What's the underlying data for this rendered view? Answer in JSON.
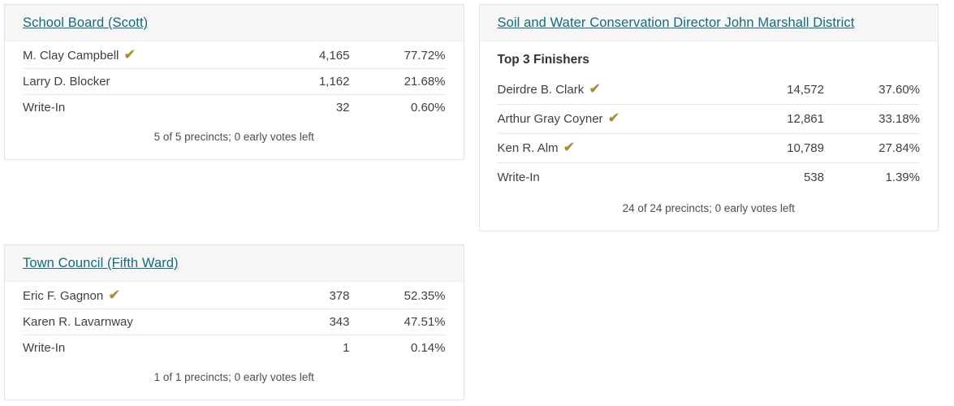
{
  "colors": {
    "heading": "#16697e",
    "check": "#a38c2f",
    "header_bg": "#f6f6f6",
    "border": "#e4e4e4"
  },
  "icons": {
    "winner_check": "✔"
  },
  "contests": [
    {
      "title": "School Board (Scott)",
      "rows": [
        {
          "name": "M. Clay Campbell",
          "winner": true,
          "votes": "4,165",
          "pct": "77.72%"
        },
        {
          "name": "Larry D. Blocker",
          "winner": false,
          "votes": "1,162",
          "pct": "21.68%"
        },
        {
          "name": "Write-In",
          "winner": false,
          "votes": "32",
          "pct": "0.60%"
        }
      ],
      "footer": "5 of 5 precincts; 0 early votes left"
    },
    {
      "title": "Soil and Water Conservation Director John Marshall District",
      "subtitle": "Top 3 Finishers",
      "rows": [
        {
          "name": "Deirdre B. Clark",
          "winner": true,
          "votes": "14,572",
          "pct": "37.60%"
        },
        {
          "name": "Arthur Gray Coyner",
          "winner": true,
          "votes": "12,861",
          "pct": "33.18%"
        },
        {
          "name": "Ken R. Alm",
          "winner": true,
          "votes": "10,789",
          "pct": "27.84%"
        },
        {
          "name": "Write-In",
          "winner": false,
          "votes": "538",
          "pct": "1.39%"
        }
      ],
      "footer": "24 of 24 precincts; 0 early votes left"
    },
    {
      "title": "Town Council (Fifth Ward)",
      "rows": [
        {
          "name": "Eric F. Gagnon",
          "winner": true,
          "votes": "378",
          "pct": "52.35%"
        },
        {
          "name": "Karen R. Lavarnway",
          "winner": false,
          "votes": "343",
          "pct": "47.51%"
        },
        {
          "name": "Write-In",
          "winner": false,
          "votes": "1",
          "pct": "0.14%"
        }
      ],
      "footer": "1 of 1 precincts; 0 early votes left"
    }
  ]
}
